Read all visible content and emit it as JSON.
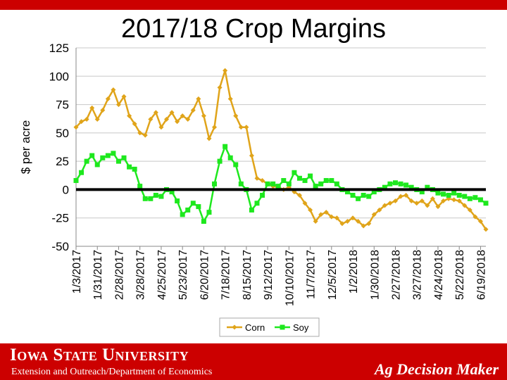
{
  "header": {
    "band_color": "#cc0000"
  },
  "chart_data": {
    "type": "line",
    "title": "2017/18 Crop Margins",
    "ylabel": "$ per acre",
    "xlabel": "",
    "ylim": [
      -50,
      125
    ],
    "yticks": [
      125,
      100,
      75,
      50,
      25,
      0,
      -25,
      -50
    ],
    "ytick_labels": [
      "125",
      "100",
      "75",
      "50",
      "25",
      "0",
      "-25",
      "-50"
    ],
    "xlim": [
      "1/3/2017",
      "6/26/2018"
    ],
    "xtick_labels": [
      "1/3/2017",
      "1/31/2017",
      "2/28/2017",
      "3/28/2017",
      "4/25/2017",
      "5/23/2017",
      "6/20/2017",
      "7/18/2017",
      "8/15/2017",
      "9/12/2017",
      "10/10/2017",
      "11/7/2017",
      "12/5/2017",
      "1/2/2018",
      "1/30/2018",
      "2/27/2018",
      "3/27/2018",
      "4/24/2018",
      "5/22/2018",
      "6/19/2018"
    ],
    "grid": "horizontal",
    "zero_line": true,
    "legend_position": "bottom",
    "series": [
      {
        "name": "Corn",
        "color": "#e0a41a",
        "points": [
          [
            "1/3/2017",
            55
          ],
          [
            "1/10/2017",
            60
          ],
          [
            "1/17/2017",
            62
          ],
          [
            "1/24/2017",
            72
          ],
          [
            "1/31/2017",
            62
          ],
          [
            "2/7/2017",
            70
          ],
          [
            "2/14/2017",
            80
          ],
          [
            "2/21/2017",
            88
          ],
          [
            "2/28/2017",
            75
          ],
          [
            "3/7/2017",
            82
          ],
          [
            "3/14/2017",
            65
          ],
          [
            "3/21/2017",
            58
          ],
          [
            "3/28/2017",
            50
          ],
          [
            "4/4/2017",
            48
          ],
          [
            "4/11/2017",
            62
          ],
          [
            "4/18/2017",
            68
          ],
          [
            "4/25/2017",
            55
          ],
          [
            "5/2/2017",
            62
          ],
          [
            "5/9/2017",
            68
          ],
          [
            "5/16/2017",
            60
          ],
          [
            "5/23/2017",
            65
          ],
          [
            "5/30/2017",
            62
          ],
          [
            "6/6/2017",
            70
          ],
          [
            "6/13/2017",
            80
          ],
          [
            "6/20/2017",
            65
          ],
          [
            "6/27/2017",
            45
          ],
          [
            "7/4/2017",
            55
          ],
          [
            "7/11/2017",
            90
          ],
          [
            "7/18/2017",
            105
          ],
          [
            "7/25/2017",
            80
          ],
          [
            "8/1/2017",
            65
          ],
          [
            "8/8/2017",
            55
          ],
          [
            "8/15/2017",
            55
          ],
          [
            "8/22/2017",
            30
          ],
          [
            "8/29/2017",
            10
          ],
          [
            "9/5/2017",
            8
          ],
          [
            "9/12/2017",
            5
          ],
          [
            "9/19/2017",
            3
          ],
          [
            "9/26/2017",
            2
          ],
          [
            "10/3/2017",
            0
          ],
          [
            "10/10/2017",
            2
          ],
          [
            "10/17/2017",
            -2
          ],
          [
            "10/24/2017",
            -5
          ],
          [
            "10/31/2017",
            -12
          ],
          [
            "11/7/2017",
            -18
          ],
          [
            "11/14/2017",
            -28
          ],
          [
            "11/21/2017",
            -22
          ],
          [
            "11/28/2017",
            -20
          ],
          [
            "12/5/2017",
            -24
          ],
          [
            "12/12/2017",
            -25
          ],
          [
            "12/19/2017",
            -30
          ],
          [
            "12/26/2017",
            -28
          ],
          [
            "1/2/2018",
            -25
          ],
          [
            "1/9/2018",
            -28
          ],
          [
            "1/16/2018",
            -32
          ],
          [
            "1/23/2018",
            -30
          ],
          [
            "1/30/2018",
            -22
          ],
          [
            "2/6/2018",
            -18
          ],
          [
            "2/13/2018",
            -14
          ],
          [
            "2/20/2018",
            -12
          ],
          [
            "2/27/2018",
            -10
          ],
          [
            "3/6/2018",
            -6
          ],
          [
            "3/13/2018",
            -5
          ],
          [
            "3/20/2018",
            -10
          ],
          [
            "3/27/2018",
            -12
          ],
          [
            "4/3/2018",
            -10
          ],
          [
            "4/10/2018",
            -14
          ],
          [
            "4/17/2018",
            -8
          ],
          [
            "4/24/2018",
            -15
          ],
          [
            "5/1/2018",
            -10
          ],
          [
            "5/8/2018",
            -8
          ],
          [
            "5/15/2018",
            -9
          ],
          [
            "5/22/2018",
            -10
          ],
          [
            "5/29/2018",
            -14
          ],
          [
            "6/5/2018",
            -18
          ],
          [
            "6/12/2018",
            -24
          ],
          [
            "6/19/2018",
            -28
          ],
          [
            "6/26/2018",
            -35
          ]
        ]
      },
      {
        "name": "Soy",
        "color": "#1ee81e",
        "points": [
          [
            "1/3/2017",
            8
          ],
          [
            "1/10/2017",
            15
          ],
          [
            "1/17/2017",
            25
          ],
          [
            "1/24/2017",
            30
          ],
          [
            "1/31/2017",
            22
          ],
          [
            "2/7/2017",
            28
          ],
          [
            "2/14/2017",
            30
          ],
          [
            "2/21/2017",
            32
          ],
          [
            "2/28/2017",
            25
          ],
          [
            "3/7/2017",
            28
          ],
          [
            "3/14/2017",
            20
          ],
          [
            "3/21/2017",
            18
          ],
          [
            "3/28/2017",
            3
          ],
          [
            "4/4/2017",
            -8
          ],
          [
            "4/11/2017",
            -8
          ],
          [
            "4/18/2017",
            -5
          ],
          [
            "4/25/2017",
            -6
          ],
          [
            "5/2/2017",
            0
          ],
          [
            "5/9/2017",
            -2
          ],
          [
            "5/16/2017",
            -10
          ],
          [
            "5/23/2017",
            -22
          ],
          [
            "5/30/2017",
            -18
          ],
          [
            "6/6/2017",
            -12
          ],
          [
            "6/13/2017",
            -15
          ],
          [
            "6/20/2017",
            -28
          ],
          [
            "6/27/2017",
            -20
          ],
          [
            "7/4/2017",
            5
          ],
          [
            "7/11/2017",
            25
          ],
          [
            "7/18/2017",
            38
          ],
          [
            "7/25/2017",
            28
          ],
          [
            "8/1/2017",
            22
          ],
          [
            "8/8/2017",
            5
          ],
          [
            "8/15/2017",
            0
          ],
          [
            "8/22/2017",
            -18
          ],
          [
            "8/29/2017",
            -12
          ],
          [
            "9/5/2017",
            -5
          ],
          [
            "9/12/2017",
            5
          ],
          [
            "9/19/2017",
            5
          ],
          [
            "9/26/2017",
            3
          ],
          [
            "10/3/2017",
            8
          ],
          [
            "10/10/2017",
            5
          ],
          [
            "10/17/2017",
            15
          ],
          [
            "10/24/2017",
            10
          ],
          [
            "10/31/2017",
            8
          ],
          [
            "11/7/2017",
            12
          ],
          [
            "11/14/2017",
            3
          ],
          [
            "11/21/2017",
            5
          ],
          [
            "11/28/2017",
            8
          ],
          [
            "12/5/2017",
            8
          ],
          [
            "12/12/2017",
            5
          ],
          [
            "12/19/2017",
            0
          ],
          [
            "12/26/2017",
            -2
          ],
          [
            "1/2/2018",
            -5
          ],
          [
            "1/9/2018",
            -8
          ],
          [
            "1/16/2018",
            -5
          ],
          [
            "1/23/2018",
            -6
          ],
          [
            "1/30/2018",
            -2
          ],
          [
            "2/6/2018",
            0
          ],
          [
            "2/13/2018",
            2
          ],
          [
            "2/20/2018",
            5
          ],
          [
            "2/27/2018",
            6
          ],
          [
            "3/6/2018",
            5
          ],
          [
            "3/13/2018",
            4
          ],
          [
            "3/20/2018",
            2
          ],
          [
            "3/27/2018",
            0
          ],
          [
            "4/3/2018",
            -2
          ],
          [
            "4/10/2018",
            2
          ],
          [
            "4/17/2018",
            0
          ],
          [
            "4/24/2018",
            -3
          ],
          [
            "5/1/2018",
            -4
          ],
          [
            "5/8/2018",
            -5
          ],
          [
            "5/15/2018",
            -3
          ],
          [
            "5/22/2018",
            -5
          ],
          [
            "5/29/2018",
            -6
          ],
          [
            "6/5/2018",
            -8
          ],
          [
            "6/12/2018",
            -7
          ],
          [
            "6/19/2018",
            -9
          ],
          [
            "6/26/2018",
            -12
          ]
        ]
      }
    ]
  },
  "footer": {
    "university": "Iowa State University",
    "subtitle": "Extension and Outreach/Department of Economics",
    "brand": "Ag Decision Maker",
    "band_color": "#cc0000"
  }
}
